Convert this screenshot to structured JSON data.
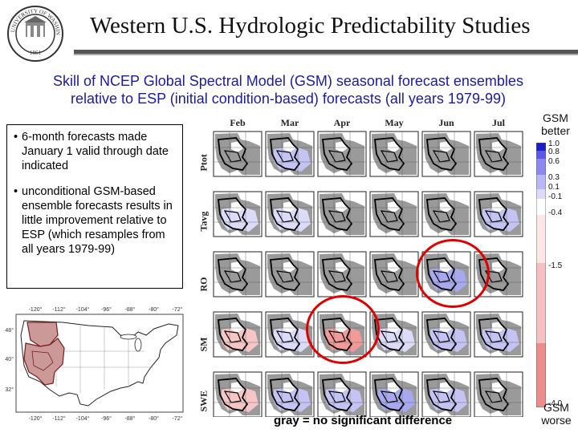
{
  "header": {
    "title": "Western U.S. Hydrologic Predictability Studies",
    "subtitle_line1": "Skill of NCEP Global Spectral Model (GSM) seasonal forecast ensembles",
    "subtitle_line2": "relative to ESP (initial condition-based) forecasts (all years 1979-99)",
    "seal_text": "UNIVERSITY OF WASHINGTON",
    "seal_year": "1861"
  },
  "textbox": {
    "bullet1": "6-month forecasts made January 1 valid through date indicated",
    "bullet2": "unconditional GSM-based ensemble forecasts results in little improvement relative to ESP (which resamples from all years 1979-99)"
  },
  "us_map": {
    "lon_labels": [
      "-120°",
      "-112°",
      "-104°",
      "-96°",
      "-88°",
      "-80°",
      "-72°"
    ],
    "lat_labels": [
      "48°",
      "40°",
      "32°"
    ]
  },
  "grid": {
    "months": [
      "Feb",
      "Mar",
      "Apr",
      "May",
      "Jun",
      "Jul"
    ],
    "rows": [
      "Ptot",
      "Tavg",
      "RO",
      "SM",
      "SWE"
    ],
    "cells": [
      [
        "gray",
        "blue_light",
        "gray",
        "gray",
        "gray",
        "gray"
      ],
      [
        "blue_faint",
        "blue_faint",
        "gray",
        "gray",
        "gray",
        "blue_light"
      ],
      [
        "gray",
        "gray",
        "gray",
        "gray",
        "blue_med",
        "gray"
      ],
      [
        "red_light",
        "blue_faint",
        "red_med",
        "blue_faint",
        "blue_light",
        "blue_light"
      ],
      [
        "red_light",
        "blue_light",
        "blue_light",
        "blue_med",
        "blue_light",
        "gray"
      ]
    ],
    "highlighted": [
      {
        "row": "RO",
        "month": "Jun"
      },
      {
        "row": "SM",
        "month": "Apr"
      }
    ]
  },
  "legend": {
    "top_label": "GSM better",
    "bottom_label": "GSM worse",
    "ticks": [
      "1.0",
      "0.8",
      "0.6",
      "0.3",
      "0.1",
      "-0.1",
      "-0.4",
      "-1.5",
      "-4.0"
    ],
    "tick_values": [
      1.0,
      0.8,
      0.6,
      0.3,
      0.1,
      -0.1,
      -0.4,
      -1.5,
      -4.0
    ]
  },
  "footer_note": "gray = no significant difference",
  "colors": {
    "gray": "#9a9a9a",
    "blue_faint": "#dcdcfa",
    "blue_light": "#c4c4f4",
    "blue_med": "#a8a8ee",
    "red_light": "#f6c6c6",
    "red_med": "#f29a9a",
    "circle": "#e10000",
    "subtitle": "#1a1aa6"
  }
}
